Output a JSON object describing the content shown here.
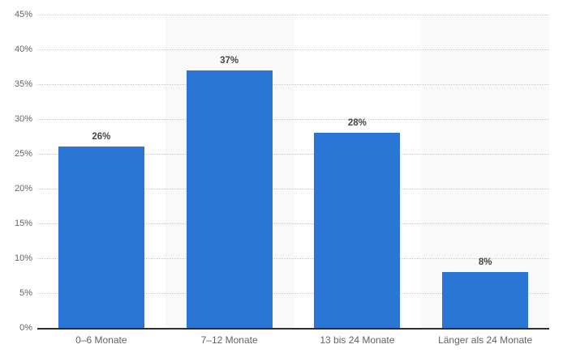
{
  "chart_data": {
    "type": "bar",
    "title": "",
    "xlabel": "",
    "ylabel": "",
    "categories": [
      "0–6 Monate",
      "7–12 Monate",
      "13 bis 24 Monate",
      "Länger als 24 Monate"
    ],
    "values": [
      26,
      37,
      28,
      8
    ],
    "value_labels": [
      "26%",
      "37%",
      "28%",
      "8%"
    ],
    "ylim": [
      0,
      45
    ],
    "ytick_step": 5,
    "ytick_labels": [
      "0%",
      "5%",
      "10%",
      "15%",
      "20%",
      "25%",
      "30%",
      "35%",
      "40%",
      "45%"
    ],
    "grid": "horizontal dotted lines at each 5% tick, none at 0%",
    "legend": "none",
    "colors": {
      "bar": "#2b76d4",
      "column_band": "#f9f9f9",
      "gridline": "#c9c9c9",
      "baseline": "#2e2e2e",
      "ytick_text": "#666666",
      "xtick_text": "#636363",
      "value_label_text": "#454545",
      "background": "#ffffff"
    },
    "layout_hints": {
      "shaded_columns": [
        1,
        3
      ],
      "bars_hover_tooltip": true
    }
  }
}
